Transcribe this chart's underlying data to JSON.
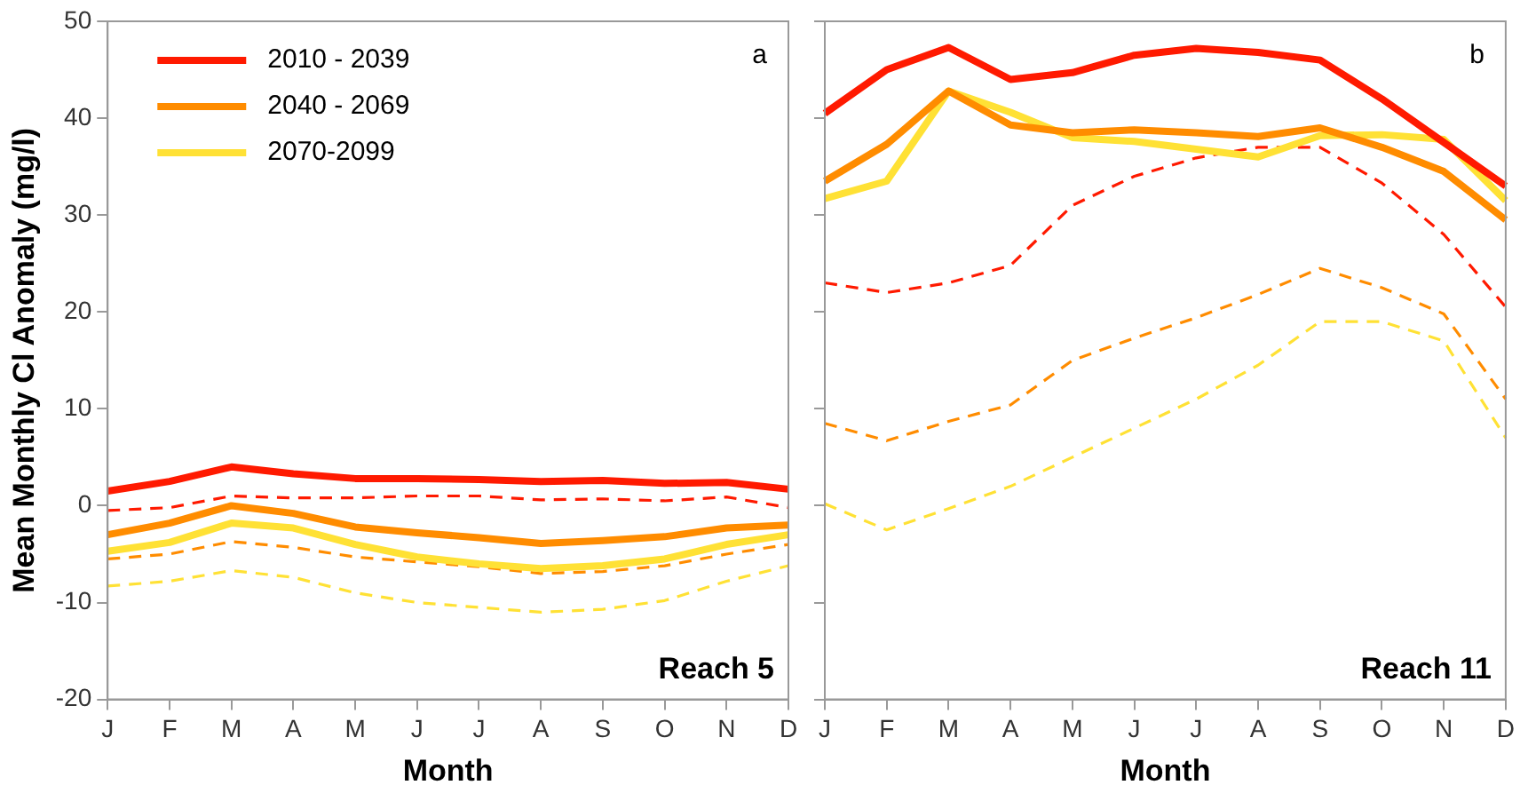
{
  "chart_data": [
    {
      "type": "line",
      "ylabel": "Mean Monthly Cl Anomaly (mg/l)",
      "xlabel": "Month",
      "categories": [
        "J",
        "F",
        "M",
        "A",
        "M",
        "J",
        "J",
        "A",
        "S",
        "O",
        "N",
        "D"
      ],
      "ylim": [
        -20,
        50
      ],
      "yticks": [
        -20,
        -10,
        0,
        10,
        20,
        30,
        40,
        50
      ],
      "grid": false,
      "legend": "top left",
      "marker": "none",
      "annotations": [
        "a",
        "Reach 5"
      ],
      "series": [
        {
          "name": "2010 - 2039",
          "color": "#ff1a00",
          "line_style": "solid",
          "values": [
            1.5,
            2.5,
            4,
            3.3,
            2.8,
            2.8,
            2.7,
            2.5,
            2.6,
            2.3,
            2.4,
            1.7
          ]
        },
        {
          "name": "2040 - 2069",
          "color": "#ff8c00",
          "line_style": "solid",
          "values": [
            -3,
            -1.8,
            0,
            -0.8,
            -2.2,
            -2.8,
            -3.3,
            -3.9,
            -3.6,
            -3.2,
            -2.3,
            -2
          ]
        },
        {
          "name": "2070-2099",
          "color": "#ffe135",
          "line_style": "solid",
          "values": [
            -4.7,
            -3.8,
            -1.8,
            -2.3,
            -4,
            -5.3,
            -6,
            -6.5,
            -6.2,
            -5.5,
            -4,
            -3
          ]
        },
        {
          "color": "#ff1a00",
          "line_style": "dashed",
          "values": [
            -0.5,
            -0.2,
            1,
            0.8,
            0.8,
            1,
            1,
            0.6,
            0.7,
            0.5,
            0.9,
            -0.2
          ]
        },
        {
          "color": "#ff8c00",
          "line_style": "dashed",
          "values": [
            -5.5,
            -5,
            -3.7,
            -4.3,
            -5.3,
            -5.8,
            -6.3,
            -7,
            -6.8,
            -6.2,
            -5,
            -4
          ]
        },
        {
          "color": "#ffe135",
          "line_style": "dashed",
          "values": [
            -8.3,
            -7.8,
            -6.7,
            -7.4,
            -9,
            -10,
            -10.5,
            -11,
            -10.7,
            -9.8,
            -7.8,
            -6.2
          ]
        }
      ]
    },
    {
      "type": "line",
      "xlabel": "Month",
      "categories": [
        "J",
        "F",
        "M",
        "A",
        "M",
        "J",
        "J",
        "A",
        "S",
        "O",
        "N",
        "D"
      ],
      "ylim": [
        -20,
        50
      ],
      "yticks": [
        -20,
        -10,
        0,
        10,
        20,
        30,
        40,
        50
      ],
      "tick_labels": "x",
      "grid": false,
      "marker": "none",
      "annotations": [
        "b",
        "Reach 11"
      ],
      "series": [
        {
          "color": "#ff1a00",
          "line_style": "solid",
          "values": [
            40.5,
            45,
            47.3,
            44,
            44.7,
            46.5,
            47.2,
            46.8,
            46,
            42,
            37.5,
            33
          ]
        },
        {
          "color": "#ff8c00",
          "line_style": "solid",
          "values": [
            33.5,
            37.3,
            42.8,
            39.3,
            38.5,
            38.8,
            38.5,
            38.1,
            39,
            37,
            34.5,
            29.5
          ]
        },
        {
          "color": "#ffe135",
          "line_style": "solid",
          "values": [
            31.7,
            33.5,
            42.8,
            40.6,
            38,
            37.6,
            36.8,
            36,
            38.2,
            38.3,
            37.8,
            31.5
          ]
        },
        {
          "color": "#ff1a00",
          "line_style": "dashed",
          "values": [
            23,
            22,
            23,
            24.8,
            31,
            34,
            35.9,
            37,
            37,
            33.3,
            28,
            20.5
          ]
        },
        {
          "color": "#ff8c00",
          "line_style": "dashed",
          "values": [
            8.5,
            6.7,
            8.7,
            10.4,
            15,
            17.3,
            19.4,
            21.8,
            24.5,
            22.5,
            19.8,
            11
          ]
        },
        {
          "color": "#ffe135",
          "line_style": "dashed",
          "values": [
            0.2,
            -2.5,
            -0.3,
            2,
            5,
            8,
            11,
            14.5,
            19,
            19,
            17,
            7
          ]
        }
      ]
    }
  ]
}
